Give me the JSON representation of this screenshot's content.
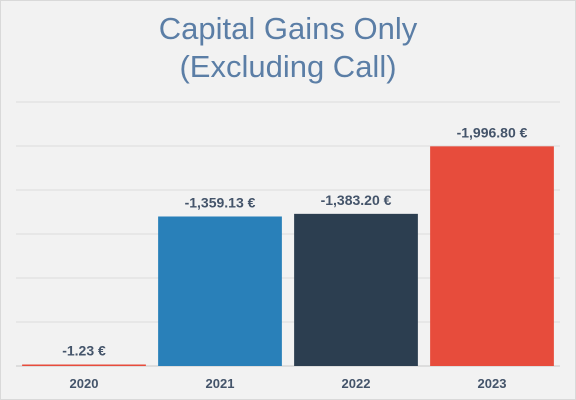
{
  "chart_data": {
    "type": "bar",
    "title_line1": "Capital Gains Only",
    "title_line2": "(Excluding Call)",
    "categories": [
      "2020",
      "2021",
      "2022",
      "2023"
    ],
    "values": [
      -1.23,
      -1359.13,
      -1383.2,
      -1996.8
    ],
    "value_labels": [
      "-1.23 €",
      "-1,359.13 €",
      "-1,383.20 €",
      "-1,996.80 €"
    ],
    "colors": [
      "#e74c3c",
      "#2980b9",
      "#2c3e50",
      "#e74c3c"
    ],
    "xlabel": "",
    "ylabel": "",
    "ylim": [
      0,
      2400
    ],
    "grid": true,
    "legend": "none"
  }
}
